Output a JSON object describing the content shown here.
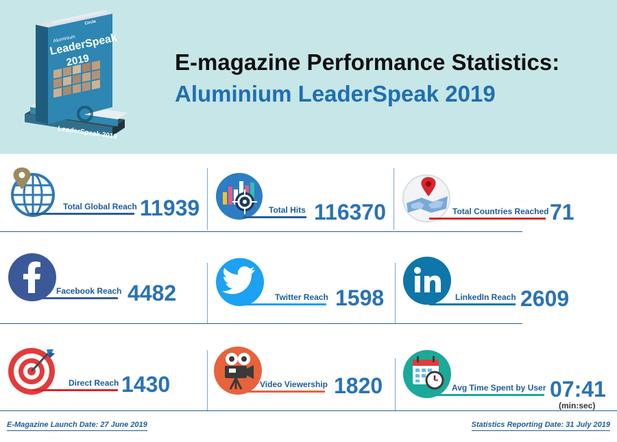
{
  "header": {
    "title_line1": "E-magazine Performance Statistics:",
    "title_line2": "Aluminium LeaderSpeak 2019",
    "book_cover": {
      "brand": "Circle",
      "subtitle": "Aluminium",
      "title": "LeaderSpeak",
      "year": "2019",
      "spine_text": "LeaderSpeak 2019"
    }
  },
  "stats": {
    "global_reach": {
      "label": "Total Global Reach",
      "value": "11939",
      "icon": "globe-pin-icon"
    },
    "total_hits": {
      "label": "Total Hits",
      "value": "116370",
      "icon": "chart-target-icon"
    },
    "countries": {
      "label": "Total Countries Reached",
      "value": "71",
      "icon": "world-map-pin-icon"
    },
    "facebook": {
      "label": "Facebook Reach",
      "value": "4482",
      "icon": "facebook-icon"
    },
    "twitter": {
      "label": "Twitter Reach",
      "value": "1598",
      "icon": "twitter-icon"
    },
    "linkedin": {
      "label": "LinkedIn Reach",
      "value": "2609",
      "icon": "linkedin-icon"
    },
    "direct": {
      "label": "Direct Reach",
      "value": "1430",
      "icon": "target-dart-icon"
    },
    "video": {
      "label": "Video Viewership",
      "value": "1820",
      "icon": "film-projector-icon"
    },
    "avg_time": {
      "label": "Avg Time Spent by User",
      "value": "07:41",
      "unit": "(min:sec)",
      "icon": "calendar-clock-icon"
    }
  },
  "footer": {
    "launch_date": "E-Magazine Launch Date: 27 June 2019",
    "reporting_date": "Statistics Reporting Date: 31 July 2019"
  },
  "colors": {
    "header_bg": "#c7e6e8",
    "title_dark": "#111111",
    "title_blue": "#1f6fb0",
    "value_blue": "#2a72b5",
    "label_blue": "#1e5c99",
    "red_accent": "#d9262b",
    "teal_accent": "#1aa99b"
  }
}
